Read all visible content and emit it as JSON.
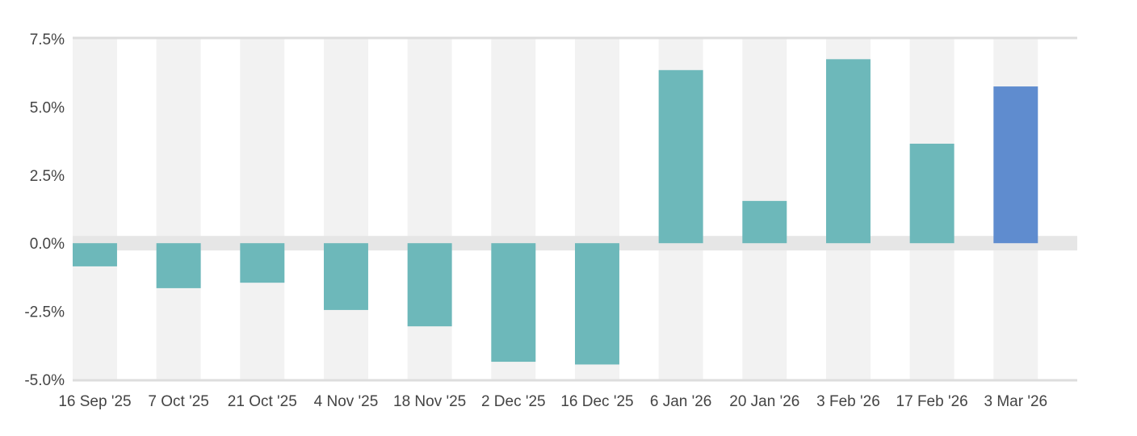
{
  "chart_data": {
    "type": "bar",
    "title": "",
    "xlabel": "",
    "ylabel": "",
    "categories": [
      "16 Sep '25",
      "7 Oct '25",
      "21 Oct '25",
      "4 Nov '25",
      "18 Nov '25",
      "2 Dec '25",
      "16 Dec '25",
      "6 Jan '26",
      "20 Jan '26",
      "3 Feb '26",
      "17 Feb '26",
      "3 Mar '26"
    ],
    "values": [
      -0.85,
      -1.65,
      -1.45,
      -2.45,
      -3.05,
      -4.35,
      -4.45,
      6.35,
      1.55,
      6.75,
      3.65,
      5.75
    ],
    "ylim": [
      -5.0,
      7.5
    ],
    "y_ticks": [
      7.5,
      5.0,
      2.5,
      0.0,
      -2.5,
      -5.0
    ],
    "y_tick_labels": [
      "7.5%",
      "5.0%",
      "2.5%",
      "0.0%",
      "-2.5%",
      "-5.0%"
    ],
    "grid": false,
    "legend": "none",
    "colors": {
      "bar": "#6db8ba",
      "highlight_bar": "#5f8ccf",
      "band": "#f2f2f2",
      "zero_band": "#e6e6e6",
      "axis_line": "#dddddd"
    },
    "highlight_index": 11
  }
}
